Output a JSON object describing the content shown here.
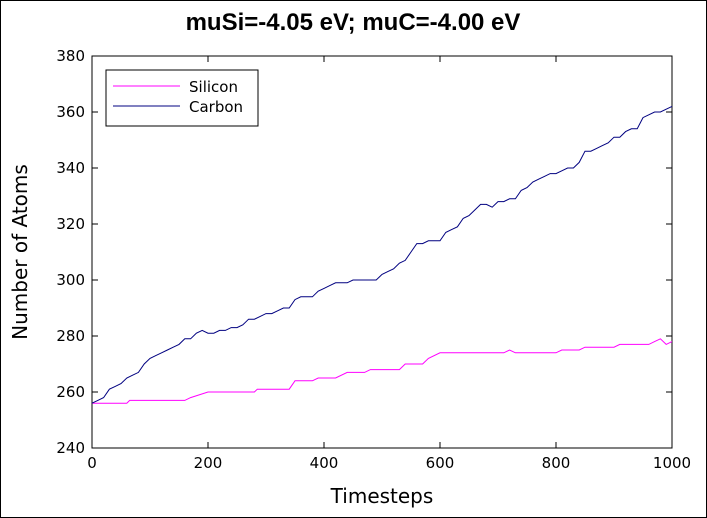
{
  "chart_data": {
    "type": "line",
    "title": "muSi=-4.05 eV; muC=-4.00 eV",
    "xlabel": "Timesteps",
    "ylabel": "Number of Atoms",
    "xlim": [
      0,
      1000
    ],
    "ylim": [
      240,
      380
    ],
    "xticks": [
      0,
      200,
      400,
      600,
      800,
      1000
    ],
    "yticks": [
      240,
      260,
      280,
      300,
      320,
      340,
      360,
      380
    ],
    "grid": false,
    "legend_position": "top-left",
    "series": [
      {
        "name": "Silicon",
        "color": "#ff00ff",
        "x": [
          0,
          60,
          65,
          160,
          170,
          200,
          205,
          280,
          285,
          340,
          350,
          380,
          390,
          420,
          440,
          470,
          480,
          530,
          540,
          570,
          580,
          600,
          710,
          720,
          730,
          800,
          810,
          840,
          850,
          900,
          910,
          960,
          970,
          980,
          990,
          1000
        ],
        "y": [
          256,
          256,
          257,
          257,
          258,
          260,
          260,
          260,
          261,
          261,
          264,
          264,
          265,
          265,
          267,
          267,
          268,
          268,
          270,
          270,
          272,
          274,
          274,
          275,
          274,
          274,
          275,
          275,
          276,
          276,
          277,
          277,
          278,
          279,
          277,
          278
        ]
      },
      {
        "name": "Carbon",
        "color": "#000080",
        "x": [
          0,
          10,
          20,
          30,
          40,
          50,
          60,
          70,
          80,
          90,
          100,
          110,
          120,
          130,
          140,
          150,
          160,
          170,
          180,
          190,
          200,
          210,
          220,
          230,
          240,
          250,
          260,
          270,
          280,
          290,
          300,
          310,
          320,
          330,
          340,
          350,
          360,
          370,
          380,
          390,
          400,
          410,
          420,
          430,
          440,
          450,
          460,
          470,
          480,
          490,
          500,
          510,
          520,
          530,
          540,
          550,
          560,
          570,
          580,
          590,
          600,
          610,
          620,
          630,
          640,
          650,
          660,
          670,
          680,
          690,
          700,
          710,
          720,
          730,
          740,
          750,
          760,
          770,
          780,
          790,
          800,
          810,
          820,
          830,
          840,
          850,
          860,
          870,
          880,
          890,
          900,
          910,
          920,
          930,
          940,
          950,
          960,
          970,
          980,
          990,
          1000
        ],
        "y": [
          256,
          257,
          258,
          261,
          262,
          263,
          265,
          266,
          267,
          270,
          272,
          273,
          274,
          275,
          276,
          277,
          279,
          279,
          281,
          282,
          281,
          281,
          282,
          282,
          283,
          283,
          284,
          286,
          286,
          287,
          288,
          288,
          289,
          290,
          290,
          293,
          294,
          294,
          294,
          296,
          297,
          298,
          299,
          299,
          299,
          300,
          300,
          300,
          300,
          300,
          302,
          303,
          304,
          306,
          307,
          310,
          313,
          313,
          314,
          314,
          314,
          317,
          318,
          319,
          322,
          323,
          325,
          327,
          327,
          326,
          328,
          328,
          329,
          329,
          332,
          333,
          335,
          336,
          337,
          338,
          338,
          339,
          340,
          340,
          342,
          346,
          346,
          347,
          348,
          349,
          351,
          351,
          353,
          354,
          354,
          358,
          359,
          360,
          360,
          361,
          362
        ]
      }
    ]
  }
}
